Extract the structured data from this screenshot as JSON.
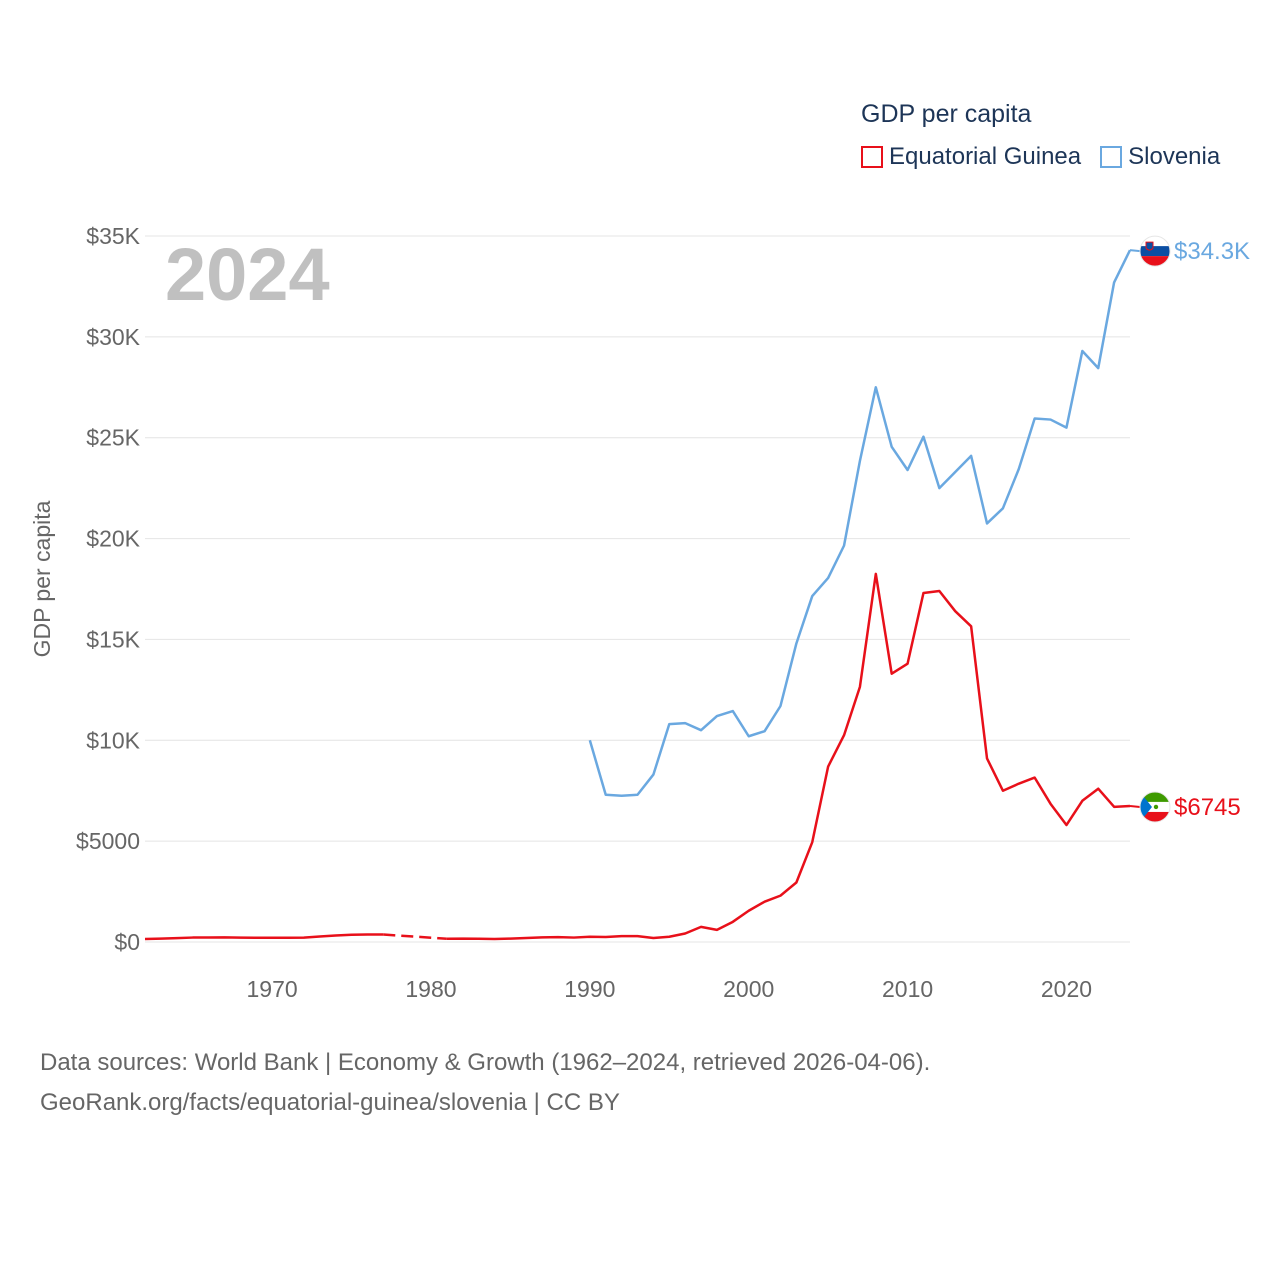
{
  "legend": {
    "title": "GDP per capita",
    "items": [
      {
        "label": "Equatorial Guinea",
        "color": "#e8101a"
      },
      {
        "label": "Slovenia",
        "color": "#6aa8e0"
      }
    ]
  },
  "year_label": "2024",
  "footer": {
    "line1": "Data sources: World Bank | Economy & Growth (1962–2024, retrieved 2026-04-06).",
    "line2": "GeoRank.org/facts/equatorial-guinea/slovenia | CC BY"
  },
  "chart_data": {
    "type": "line",
    "title": "GDP per capita",
    "xlabel": "",
    "ylabel": "GDP per capita",
    "xlim": [
      1962,
      2024
    ],
    "ylim": [
      0,
      35000
    ],
    "grid": true,
    "yticks": [
      {
        "value": 0,
        "label": "$0"
      },
      {
        "value": 5000,
        "label": "$5000"
      },
      {
        "value": 10000,
        "label": "$10K"
      },
      {
        "value": 15000,
        "label": "$15K"
      },
      {
        "value": 20000,
        "label": "$20K"
      },
      {
        "value": 25000,
        "label": "$25K"
      },
      {
        "value": 30000,
        "label": "$30K"
      },
      {
        "value": 35000,
        "label": "$35K"
      }
    ],
    "xticks": [
      {
        "value": 1970,
        "label": "1970"
      },
      {
        "value": 1980,
        "label": "1980"
      },
      {
        "value": 1990,
        "label": "1990"
      },
      {
        "value": 2000,
        "label": "2000"
      },
      {
        "value": 2010,
        "label": "2010"
      },
      {
        "value": 2020,
        "label": "2020"
      }
    ],
    "series": [
      {
        "name": "Equatorial Guinea",
        "color": "#e8101a",
        "end_label": "$6745",
        "flag": "equatorial-guinea-flag",
        "gap": [
          1977,
          1981
        ],
        "x": [
          1962,
          1963,
          1964,
          1965,
          1966,
          1967,
          1968,
          1969,
          1970,
          1971,
          1972,
          1973,
          1974,
          1975,
          1976,
          1977,
          1981,
          1982,
          1983,
          1984,
          1985,
          1986,
          1987,
          1988,
          1989,
          1990,
          1991,
          1992,
          1993,
          1994,
          1995,
          1996,
          1997,
          1998,
          1999,
          2000,
          2001,
          2002,
          2003,
          2004,
          2005,
          2006,
          2007,
          2008,
          2009,
          2010,
          2011,
          2012,
          2013,
          2014,
          2015,
          2016,
          2017,
          2018,
          2019,
          2020,
          2021,
          2022,
          2023,
          2024
        ],
        "values": [
          150,
          170,
          190,
          220,
          225,
          230,
          215,
          210,
          210,
          210,
          215,
          270,
          320,
          360,
          370,
          370,
          160,
          170,
          160,
          150,
          170,
          200,
          230,
          240,
          220,
          260,
          250,
          290,
          290,
          200,
          260,
          420,
          750,
          600,
          1000,
          1550,
          2000,
          2300,
          2950,
          4950,
          8700,
          10250,
          12650,
          18250,
          13300,
          13800,
          17300,
          17400,
          16400,
          15650,
          9100,
          7500,
          7850,
          8150,
          6850,
          5800,
          7000,
          7600,
          6700,
          6745
        ]
      },
      {
        "name": "Slovenia",
        "color": "#6aa8e0",
        "end_label": "$34.3K",
        "flag": "slovenia-flag",
        "x": [
          1990,
          1991,
          1992,
          1993,
          1994,
          1995,
          1996,
          1997,
          1998,
          1999,
          2000,
          2001,
          2002,
          2003,
          2004,
          2005,
          2006,
          2007,
          2008,
          2009,
          2010,
          2011,
          2012,
          2013,
          2014,
          2015,
          2016,
          2017,
          2018,
          2019,
          2020,
          2021,
          2022,
          2023,
          2024
        ],
        "values": [
          10000,
          7300,
          7250,
          7300,
          8300,
          10800,
          10850,
          10500,
          11200,
          11450,
          10200,
          10450,
          11700,
          14800,
          17150,
          18050,
          19650,
          23850,
          27500,
          24550,
          23400,
          25050,
          22500,
          23300,
          24100,
          20750,
          21500,
          23450,
          25950,
          25900,
          25500,
          29300,
          28450,
          32700,
          34300
        ]
      }
    ]
  }
}
